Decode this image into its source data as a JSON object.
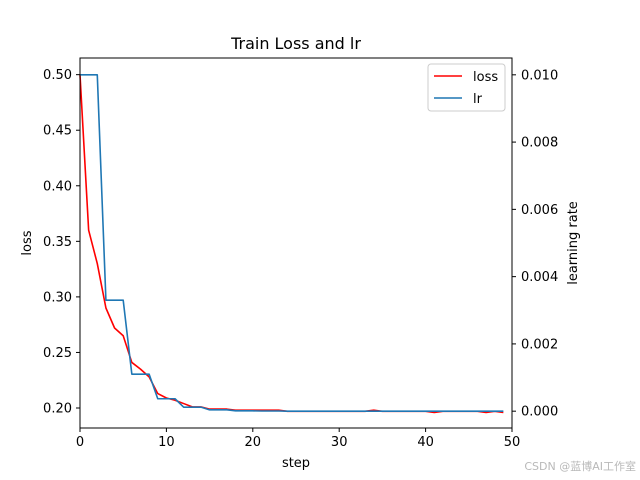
{
  "chart_data": {
    "type": "line",
    "title": "Train Loss and lr",
    "xlabel": "step",
    "ylabel": "loss",
    "y2label": "learning rate",
    "xlim": [
      0,
      50
    ],
    "ylim": [
      0.182,
      0.515
    ],
    "y2lim": [
      -0.0005,
      0.0105
    ],
    "xticks": [
      "0",
      "10",
      "20",
      "30",
      "40",
      "50"
    ],
    "yticks": [
      "0.20",
      "0.25",
      "0.30",
      "0.35",
      "0.40",
      "0.45",
      "0.50"
    ],
    "y2ticks": [
      "0.000",
      "0.002",
      "0.004",
      "0.006",
      "0.008",
      "0.010"
    ],
    "grid": false,
    "legend_position": "top-right",
    "series": [
      {
        "name": "loss",
        "color": "#ff0000",
        "axis": "left",
        "x": [
          0,
          1,
          2,
          3,
          4,
          5,
          6,
          7,
          8,
          9,
          10,
          11,
          12,
          13,
          14,
          15,
          16,
          17,
          18,
          19,
          20,
          21,
          22,
          23,
          24,
          25,
          26,
          27,
          28,
          29,
          30,
          31,
          32,
          33,
          34,
          35,
          36,
          37,
          38,
          39,
          40,
          41,
          42,
          43,
          44,
          45,
          46,
          47,
          48,
          49
        ],
        "values": [
          0.5,
          0.36,
          0.33,
          0.29,
          0.272,
          0.265,
          0.241,
          0.235,
          0.228,
          0.213,
          0.209,
          0.207,
          0.204,
          0.201,
          0.201,
          0.199,
          0.199,
          0.199,
          0.198,
          0.198,
          0.198,
          0.198,
          0.198,
          0.198,
          0.197,
          0.197,
          0.197,
          0.197,
          0.197,
          0.197,
          0.197,
          0.197,
          0.197,
          0.197,
          0.198,
          0.197,
          0.197,
          0.197,
          0.197,
          0.197,
          0.197,
          0.196,
          0.197,
          0.197,
          0.197,
          0.197,
          0.197,
          0.196,
          0.197,
          0.196
        ]
      },
      {
        "name": "lr",
        "color": "#1f77b4",
        "axis": "right",
        "x": [
          0,
          1,
          2,
          3,
          4,
          5,
          6,
          7,
          8,
          9,
          10,
          11,
          12,
          13,
          14,
          15,
          16,
          17,
          18,
          19,
          20,
          21,
          22,
          23,
          24,
          25,
          26,
          27,
          28,
          29,
          30,
          31,
          32,
          33,
          34,
          35,
          36,
          37,
          38,
          39,
          40,
          41,
          42,
          43,
          44,
          45,
          46,
          47,
          48,
          49
        ],
        "values": [
          0.01,
          0.01,
          0.01,
          0.0033,
          0.0033,
          0.0033,
          0.0011,
          0.0011,
          0.0011,
          0.00037,
          0.00037,
          0.00037,
          0.00012,
          0.00012,
          0.00012,
          4e-05,
          4e-05,
          4e-05,
          1e-05,
          1e-05,
          1e-05,
          5e-06,
          5e-06,
          5e-06,
          0.0,
          0.0,
          0.0,
          0.0,
          0.0,
          0.0,
          0.0,
          0.0,
          0.0,
          0.0,
          0.0,
          0.0,
          0.0,
          0.0,
          0.0,
          0.0,
          0.0,
          0.0,
          0.0,
          0.0,
          0.0,
          0.0,
          0.0,
          0.0,
          0.0,
          0.0
        ]
      }
    ]
  },
  "watermark": "CSDN @蓝博AI工作室"
}
